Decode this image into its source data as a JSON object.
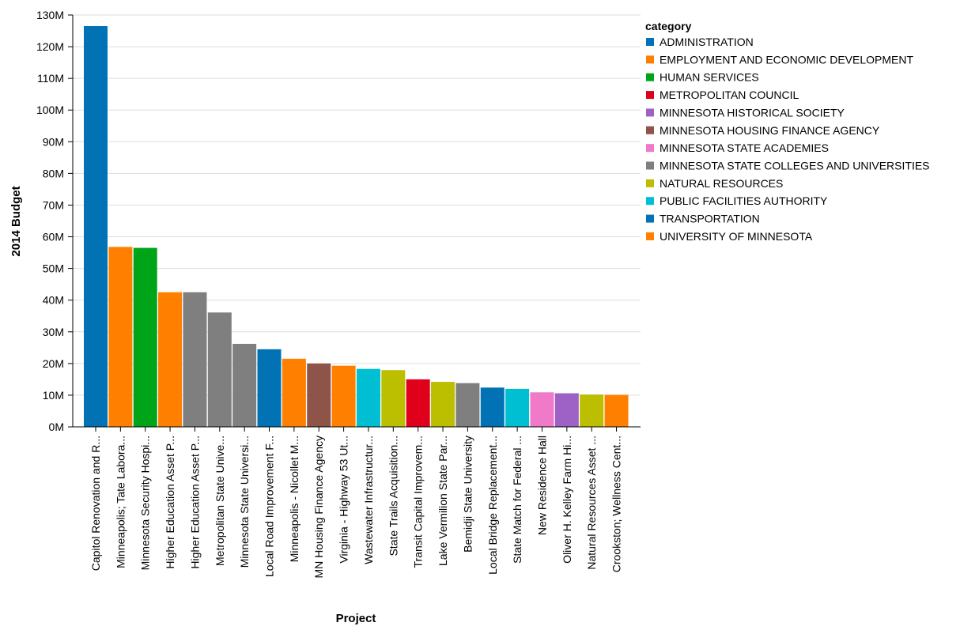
{
  "chart_data": {
    "type": "bar",
    "xlabel": "Project",
    "ylabel": "2014 Budget",
    "ylim": [
      0,
      130000000
    ],
    "y_ticks": [
      0,
      10000000,
      20000000,
      30000000,
      40000000,
      50000000,
      60000000,
      70000000,
      80000000,
      90000000,
      100000000,
      110000000,
      120000000,
      130000000
    ],
    "y_tick_labels": [
      "0M",
      "10M",
      "20M",
      "30M",
      "40M",
      "50M",
      "60M",
      "70M",
      "80M",
      "90M",
      "100M",
      "110M",
      "120M",
      "130M"
    ],
    "grid": true,
    "legend": {
      "title": "category",
      "position": "top-right",
      "entries": [
        {
          "name": "ADMINISTRATION",
          "color": "#0173b5"
        },
        {
          "name": "EMPLOYMENT AND ECONOMIC DEVELOPMENT",
          "color": "#ff7f00"
        },
        {
          "name": "HUMAN SERVICES",
          "color": "#00a419"
        },
        {
          "name": "METROPOLITAN COUNCIL",
          "color": "#e0001b"
        },
        {
          "name": "MINNESOTA HISTORICAL SOCIETY",
          "color": "#9e61c6"
        },
        {
          "name": "MINNESOTA HOUSING FINANCE AGENCY",
          "color": "#8e5449"
        },
        {
          "name": "MINNESOTA STATE ACADEMIES",
          "color": "#f079c8"
        },
        {
          "name": "MINNESOTA STATE COLLEGES AND UNIVERSITIES",
          "color": "#7f7f7f"
        },
        {
          "name": "NATURAL RESOURCES",
          "color": "#bcbe00"
        },
        {
          "name": "PUBLIC FACILITIES AUTHORITY",
          "color": "#00bfd3"
        },
        {
          "name": "TRANSPORTATION",
          "color": "#0173b5"
        },
        {
          "name": "UNIVERSITY OF MINNESOTA",
          "color": "#ff7f00"
        }
      ]
    },
    "bars": [
      {
        "label": "Capitol Renovation and R...",
        "category": "ADMINISTRATION",
        "value": 126500000
      },
      {
        "label": "Minneapolis; Tate Labora...",
        "category": "UNIVERSITY OF MINNESOTA",
        "value": 56800000
      },
      {
        "label": "Minnesota Security Hospi...",
        "category": "HUMAN SERVICES",
        "value": 56500000
      },
      {
        "label": "Higher Education Asset P...",
        "category": "UNIVERSITY OF MINNESOTA",
        "value": 42500000
      },
      {
        "label": "Higher Education Asset P...",
        "category": "MINNESOTA STATE COLLEGES AND UNIVERSITIES",
        "value": 42500000
      },
      {
        "label": "Metropolitan State Unive...",
        "category": "MINNESOTA STATE COLLEGES AND UNIVERSITIES",
        "value": 36100000
      },
      {
        "label": "Minnesota State Universi...",
        "category": "MINNESOTA STATE COLLEGES AND UNIVERSITIES",
        "value": 26200000
      },
      {
        "label": "Local Road Improvement F...",
        "category": "TRANSPORTATION",
        "value": 24500000
      },
      {
        "label": "Minneapolis - Nicollet M...",
        "category": "EMPLOYMENT AND ECONOMIC DEVELOPMENT",
        "value": 21500000
      },
      {
        "label": "MN Housing Finance Agency",
        "category": "MINNESOTA HOUSING FINANCE AGENCY",
        "value": 20000000
      },
      {
        "label": "Virginia - Highway 53 Ut...",
        "category": "EMPLOYMENT AND ECONOMIC DEVELOPMENT",
        "value": 19300000
      },
      {
        "label": "Wastewater Infrastructur...",
        "category": "PUBLIC FACILITIES AUTHORITY",
        "value": 18300000
      },
      {
        "label": "State Trails Acquisition...",
        "category": "NATURAL RESOURCES",
        "value": 17900000
      },
      {
        "label": "Transit Capital Improvem...",
        "category": "METROPOLITAN COUNCIL",
        "value": 15000000
      },
      {
        "label": "Lake Vermilion State Par...",
        "category": "NATURAL RESOURCES",
        "value": 14200000
      },
      {
        "label": "Bemidji State University",
        "category": "MINNESOTA STATE COLLEGES AND UNIVERSITIES",
        "value": 13800000
      },
      {
        "label": "Local Bridge Replacement...",
        "category": "TRANSPORTATION",
        "value": 12400000
      },
      {
        "label": "State Match for Federal ...",
        "category": "PUBLIC FACILITIES AUTHORITY",
        "value": 12000000
      },
      {
        "label": "New Residence Hall",
        "category": "MINNESOTA STATE ACADEMIES",
        "value": 10900000
      },
      {
        "label": "Oliver H. Kelley Farm Hi...",
        "category": "MINNESOTA HISTORICAL SOCIETY",
        "value": 10600000
      },
      {
        "label": "Natural Resources Asset ...",
        "category": "NATURAL RESOURCES",
        "value": 10200000
      },
      {
        "label": "Crookston; Wellness Cent...",
        "category": "UNIVERSITY OF MINNESOTA",
        "value": 10100000
      }
    ]
  }
}
